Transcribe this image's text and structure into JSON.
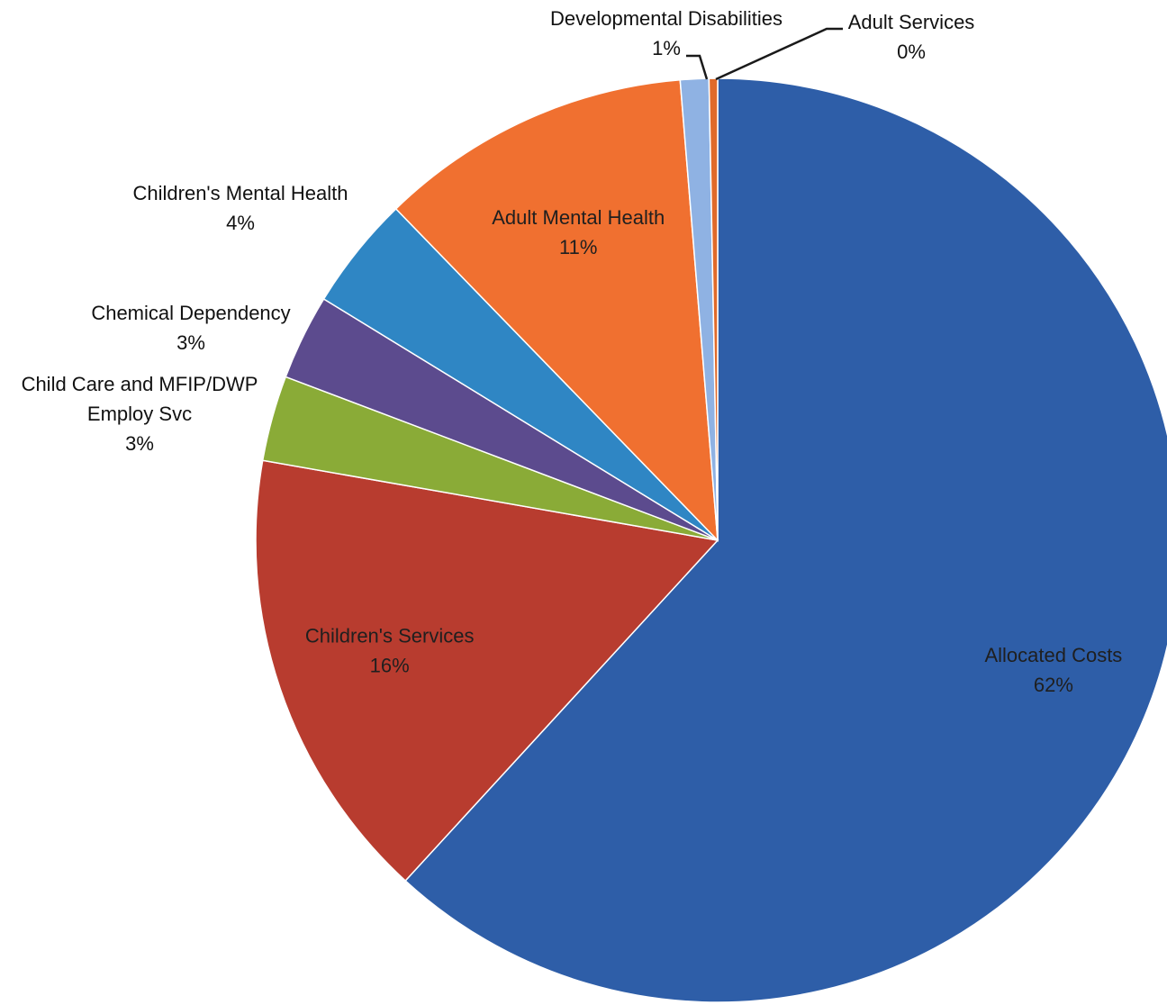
{
  "chart_data": {
    "type": "pie",
    "title": "",
    "slices": [
      {
        "name": "Allocated Costs",
        "value": 62,
        "label": "62%",
        "color": "#2e5ea8"
      },
      {
        "name": "Children's Services",
        "value": 16,
        "label": "16%",
        "color": "#b83c2f"
      },
      {
        "name": "Child Care and MFIP/DWP Employ Svc",
        "value": 3,
        "label": "3%",
        "color": "#8aab37",
        "name_lines": [
          "Child Care and MFIP/DWP",
          "Employ Svc"
        ]
      },
      {
        "name": "Chemical Dependency",
        "value": 3,
        "label": "3%",
        "color": "#5c4b8e"
      },
      {
        "name": "Children's Mental Health",
        "value": 4,
        "label": "4%",
        "color": "#2f86c4"
      },
      {
        "name": "Adult Mental Health",
        "value": 11,
        "label": "11%",
        "color": "#f07030"
      },
      {
        "name": "Developmental Disabilities",
        "value": 1,
        "label": "1%",
        "color": "#8fb2e3"
      },
      {
        "name": "Adult Services",
        "value": 0,
        "label": "0%",
        "color": "#e06a2a"
      }
    ]
  }
}
